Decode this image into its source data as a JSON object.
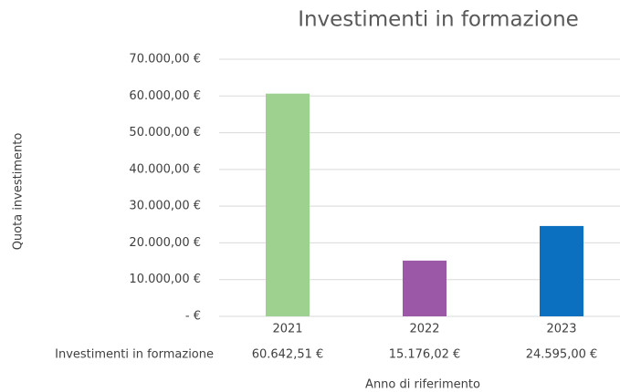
{
  "chart_data": {
    "type": "bar",
    "title": "Investimenti in formazione",
    "y_label": "Quota investimento",
    "x_label": "Anno di riferimento",
    "categories": [
      "2021",
      "2022",
      "2023"
    ],
    "series": [
      {
        "name": "Investimenti in formazione",
        "values": [
          60642.51,
          15176.02,
          24595.0
        ],
        "value_labels": [
          "60.642,51 €",
          "15.176,02 €",
          "24.595,00 €"
        ],
        "colors": [
          "#9ed18f",
          "#9a58a6",
          "#0b70bf"
        ]
      }
    ],
    "ylim": [
      0,
      70000
    ],
    "yticks": [
      {
        "value": 0,
        "label": "-  €"
      },
      {
        "value": 10000,
        "label": "10.000,00 €"
      },
      {
        "value": 20000,
        "label": "20.000,00 €"
      },
      {
        "value": 30000,
        "label": "30.000,00 €"
      },
      {
        "value": 40000,
        "label": "40.000,00 €"
      },
      {
        "value": 50000,
        "label": "50.000,00 €"
      },
      {
        "value": 60000,
        "label": "60.000,00 €"
      },
      {
        "value": 70000,
        "label": "70.000,00 €"
      }
    ],
    "grid": true
  }
}
